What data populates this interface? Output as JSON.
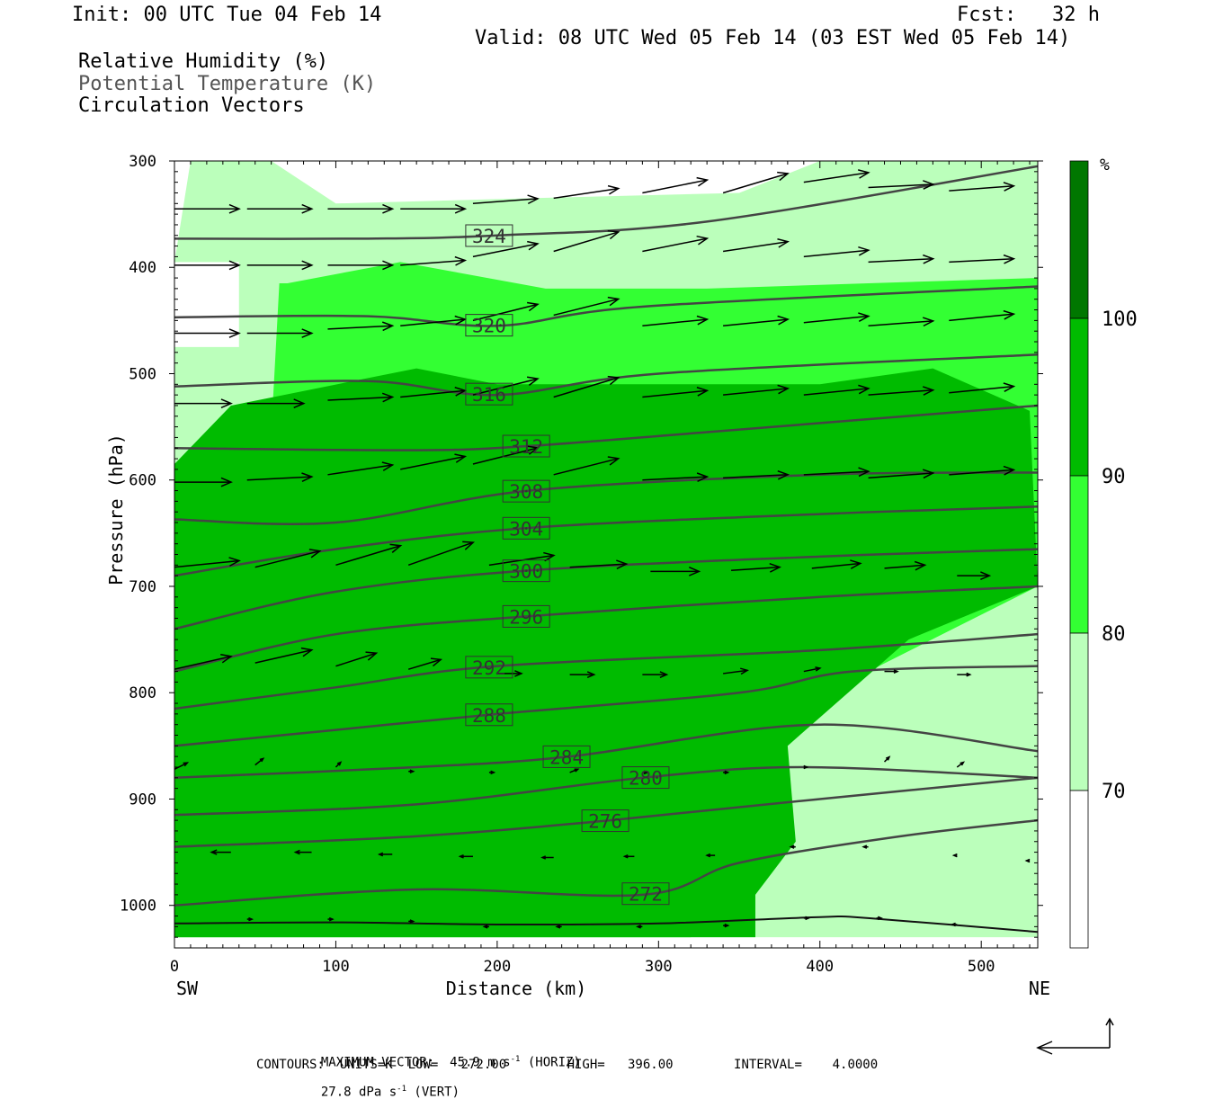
{
  "header": {
    "init": "Init: 00 UTC Tue 04 Feb 14",
    "fcst": "Fcst:   32 h",
    "valid": "Valid: 08 UTC Wed 05 Feb 14 (03 EST Wed 05 Feb 14)"
  },
  "legend_titles": [
    "Relative Humidity (%)",
    "Potential Temperature (K)",
    "Circulation Vectors"
  ],
  "chart_data": {
    "type": "cross-section",
    "xlabel": "Distance (km)",
    "ylabel": "Pressure (hPa)",
    "xlim": [
      0,
      535
    ],
    "ylim": [
      1040,
      300
    ],
    "x_ticks": [
      0,
      100,
      200,
      300,
      400,
      500
    ],
    "y_ticks": [
      300,
      400,
      500,
      600,
      700,
      800,
      900,
      1000
    ],
    "endpoint_left": "SW",
    "endpoint_right": "NE",
    "colorbar": {
      "unit": "%",
      "levels": [
        70,
        80,
        90,
        100
      ],
      "colors": [
        "#ffffff",
        "#bbffbb",
        "#33ff33",
        "#00bb00",
        "#007700"
      ]
    },
    "rh_fill": {
      "band_70_80": {
        "x": [
          0,
          535
        ],
        "comment": ""
      },
      "light_region": [
        [
          10,
          300
        ],
        [
          60,
          300
        ],
        [
          100,
          340
        ],
        [
          220,
          335
        ],
        [
          350,
          330
        ],
        [
          400,
          300
        ],
        [
          535,
          300
        ],
        [
          535,
          1030
        ],
        [
          0,
          1030
        ],
        [
          0,
          475
        ],
        [
          40,
          475
        ],
        [
          40,
          395
        ],
        [
          0,
          395
        ]
      ],
      "mid_region": [
        [
          70,
          415
        ],
        [
          140,
          395
        ],
        [
          230,
          420
        ],
        [
          330,
          420
        ],
        [
          430,
          415
        ],
        [
          535,
          410
        ],
        [
          535,
          700
        ],
        [
          430,
          780
        ],
        [
          360,
          850
        ],
        [
          330,
          960
        ],
        [
          320,
          1030
        ],
        [
          0,
          1030
        ],
        [
          0,
          585
        ],
        [
          60,
          555
        ],
        [
          65,
          415
        ]
      ],
      "dark_region": [
        [
          35,
          530
        ],
        [
          150,
          495
        ],
        [
          200,
          510
        ],
        [
          300,
          510
        ],
        [
          400,
          510
        ],
        [
          470,
          495
        ],
        [
          530,
          535
        ],
        [
          535,
          700
        ],
        [
          455,
          750
        ],
        [
          380,
          850
        ],
        [
          385,
          940
        ],
        [
          360,
          990
        ],
        [
          360,
          1030
        ],
        [
          0,
          1030
        ],
        [
          0,
          585
        ]
      ]
    },
    "theta_contours": [
      {
        "level": 324,
        "points": [
          [
            0,
            373
          ],
          [
            120,
            373
          ],
          [
            200,
            370
          ],
          [
            330,
            357
          ],
          [
            535,
            305
          ]
        ],
        "label_x": 195
      },
      {
        "level": 320,
        "points": [
          [
            0,
            447
          ],
          [
            120,
            446
          ],
          [
            200,
            455
          ],
          [
            290,
            437
          ],
          [
            535,
            418
          ]
        ],
        "label_x": 195
      },
      {
        "level": 316,
        "points": [
          [
            0,
            512
          ],
          [
            120,
            507
          ],
          [
            200,
            520
          ],
          [
            300,
            500
          ],
          [
            535,
            482
          ]
        ],
        "label_x": 195
      },
      {
        "level": 312,
        "points": [
          [
            0,
            570
          ],
          [
            150,
            572
          ],
          [
            220,
            568
          ],
          [
            330,
            555
          ],
          [
            535,
            530
          ]
        ],
        "label_x": 218
      },
      {
        "level": 308,
        "points": [
          [
            0,
            637
          ],
          [
            100,
            640
          ],
          [
            220,
            610
          ],
          [
            400,
            595
          ],
          [
            535,
            593
          ]
        ],
        "label_x": 218
      },
      {
        "level": 304,
        "points": [
          [
            0,
            690
          ],
          [
            100,
            665
          ],
          [
            220,
            645
          ],
          [
            400,
            632
          ],
          [
            535,
            625
          ]
        ],
        "label_x": 218
      },
      {
        "level": 300,
        "points": [
          [
            0,
            740
          ],
          [
            100,
            705
          ],
          [
            220,
            685
          ],
          [
            400,
            672
          ],
          [
            535,
            665
          ]
        ],
        "label_x": 218
      },
      {
        "level": 296,
        "points": [
          [
            0,
            780
          ],
          [
            100,
            745
          ],
          [
            220,
            728
          ],
          [
            400,
            710
          ],
          [
            535,
            700
          ]
        ],
        "label_x": 218
      },
      {
        "level": 292,
        "points": [
          [
            0,
            815
          ],
          [
            100,
            795
          ],
          [
            200,
            775
          ],
          [
            400,
            760
          ],
          [
            535,
            745
          ]
        ],
        "label_x": 195
      },
      {
        "level": 288,
        "points": [
          [
            0,
            850
          ],
          [
            100,
            835
          ],
          [
            200,
            820
          ],
          [
            350,
            800
          ],
          [
            420,
            780
          ],
          [
            535,
            775
          ]
        ],
        "label_x": 195
      },
      {
        "level": 284,
        "points": [
          [
            0,
            880
          ],
          [
            150,
            870
          ],
          [
            245,
            860
          ],
          [
            400,
            830
          ],
          [
            535,
            855
          ]
        ],
        "label_x": 243
      },
      {
        "level": 280,
        "points": [
          [
            0,
            915
          ],
          [
            150,
            905
          ],
          [
            290,
            880
          ],
          [
            390,
            870
          ],
          [
            535,
            880
          ]
        ],
        "label_x": 292
      },
      {
        "level": 276,
        "points": [
          [
            0,
            945
          ],
          [
            150,
            935
          ],
          [
            270,
            920
          ],
          [
            400,
            900
          ],
          [
            535,
            880
          ]
        ],
        "label_x": 267
      },
      {
        "level": 272,
        "points": [
          [
            0,
            1000
          ],
          [
            150,
            985
          ],
          [
            290,
            990
          ],
          [
            350,
            960
          ],
          [
            450,
            935
          ],
          [
            535,
            920
          ]
        ],
        "label_x": 292
      }
    ],
    "surface_line": [
      [
        0,
        1017
      ],
      [
        100,
        1016
      ],
      [
        200,
        1018
      ],
      [
        300,
        1017
      ],
      [
        400,
        1011
      ],
      [
        430,
        1012
      ],
      [
        535,
        1025
      ]
    ],
    "vectors": [
      {
        "x": 0,
        "p": 345,
        "u": 40,
        "w": 0
      },
      {
        "x": 45,
        "p": 345,
        "u": 40,
        "w": 0
      },
      {
        "x": 95,
        "p": 345,
        "u": 40,
        "w": 0
      },
      {
        "x": 140,
        "p": 345,
        "u": 40,
        "w": 0
      },
      {
        "x": 185,
        "p": 340,
        "u": 40,
        "w": 3
      },
      {
        "x": 235,
        "p": 335,
        "u": 40,
        "w": 6
      },
      {
        "x": 290,
        "p": 330,
        "u": 40,
        "w": 8
      },
      {
        "x": 340,
        "p": 330,
        "u": 40,
        "w": 12
      },
      {
        "x": 390,
        "p": 320,
        "u": 40,
        "w": 6
      },
      {
        "x": 430,
        "p": 325,
        "u": 40,
        "w": 2
      },
      {
        "x": 480,
        "p": 328,
        "u": 40,
        "w": 3
      },
      {
        "x": 0,
        "p": 398,
        "u": 40,
        "w": 0
      },
      {
        "x": 45,
        "p": 398,
        "u": 40,
        "w": 0
      },
      {
        "x": 95,
        "p": 398,
        "u": 40,
        "w": 0
      },
      {
        "x": 140,
        "p": 398,
        "u": 40,
        "w": 3
      },
      {
        "x": 185,
        "p": 390,
        "u": 40,
        "w": 8
      },
      {
        "x": 235,
        "p": 385,
        "u": 40,
        "w": 12
      },
      {
        "x": 290,
        "p": 385,
        "u": 40,
        "w": 8
      },
      {
        "x": 340,
        "p": 385,
        "u": 40,
        "w": 6
      },
      {
        "x": 390,
        "p": 390,
        "u": 40,
        "w": 4
      },
      {
        "x": 430,
        "p": 395,
        "u": 40,
        "w": 2
      },
      {
        "x": 480,
        "p": 395,
        "u": 40,
        "w": 2
      },
      {
        "x": 0,
        "p": 462,
        "u": 40,
        "w": 0
      },
      {
        "x": 45,
        "p": 462,
        "u": 40,
        "w": 0
      },
      {
        "x": 95,
        "p": 458,
        "u": 40,
        "w": 2
      },
      {
        "x": 140,
        "p": 455,
        "u": 40,
        "w": 4
      },
      {
        "x": 185,
        "p": 450,
        "u": 40,
        "w": 10
      },
      {
        "x": 235,
        "p": 445,
        "u": 40,
        "w": 10
      },
      {
        "x": 290,
        "p": 455,
        "u": 40,
        "w": 4
      },
      {
        "x": 340,
        "p": 455,
        "u": 40,
        "w": 4
      },
      {
        "x": 390,
        "p": 452,
        "u": 40,
        "w": 4
      },
      {
        "x": 430,
        "p": 455,
        "u": 40,
        "w": 3
      },
      {
        "x": 480,
        "p": 450,
        "u": 40,
        "w": 4
      },
      {
        "x": 0,
        "p": 528,
        "u": 35,
        "w": 0
      },
      {
        "x": 45,
        "p": 528,
        "u": 35,
        "w": 0
      },
      {
        "x": 95,
        "p": 525,
        "u": 40,
        "w": 2
      },
      {
        "x": 140,
        "p": 522,
        "u": 40,
        "w": 4
      },
      {
        "x": 185,
        "p": 520,
        "u": 40,
        "w": 10
      },
      {
        "x": 235,
        "p": 522,
        "u": 40,
        "w": 12
      },
      {
        "x": 290,
        "p": 522,
        "u": 40,
        "w": 4
      },
      {
        "x": 340,
        "p": 520,
        "u": 40,
        "w": 4
      },
      {
        "x": 390,
        "p": 520,
        "u": 40,
        "w": 4
      },
      {
        "x": 430,
        "p": 520,
        "u": 40,
        "w": 3
      },
      {
        "x": 480,
        "p": 518,
        "u": 40,
        "w": 4
      },
      {
        "x": 0,
        "p": 602,
        "u": 35,
        "w": 0
      },
      {
        "x": 45,
        "p": 600,
        "u": 40,
        "w": 2
      },
      {
        "x": 95,
        "p": 595,
        "u": 40,
        "w": 6
      },
      {
        "x": 140,
        "p": 590,
        "u": 40,
        "w": 8
      },
      {
        "x": 185,
        "p": 585,
        "u": 40,
        "w": 10
      },
      {
        "x": 235,
        "p": 595,
        "u": 40,
        "w": 10
      },
      {
        "x": 290,
        "p": 600,
        "u": 40,
        "w": 2
      },
      {
        "x": 340,
        "p": 598,
        "u": 40,
        "w": 2
      },
      {
        "x": 390,
        "p": 595,
        "u": 40,
        "w": 2
      },
      {
        "x": 430,
        "p": 598,
        "u": 40,
        "w": 3
      },
      {
        "x": 480,
        "p": 595,
        "u": 40,
        "w": 3
      },
      {
        "x": 0,
        "p": 682,
        "u": 40,
        "w": 4
      },
      {
        "x": 50,
        "p": 682,
        "u": 40,
        "w": 10
      },
      {
        "x": 100,
        "p": 680,
        "u": 40,
        "w": 12
      },
      {
        "x": 145,
        "p": 680,
        "u": 40,
        "w": 14
      },
      {
        "x": 195,
        "p": 680,
        "u": 40,
        "w": 6
      },
      {
        "x": 245,
        "p": 682,
        "u": 35,
        "w": 2
      },
      {
        "x": 295,
        "p": 686,
        "u": 30,
        "w": 0
      },
      {
        "x": 345,
        "p": 685,
        "u": 30,
        "w": 2
      },
      {
        "x": 395,
        "p": 683,
        "u": 30,
        "w": 3
      },
      {
        "x": 440,
        "p": 683,
        "u": 25,
        "w": 2
      },
      {
        "x": 485,
        "p": 690,
        "u": 20,
        "w": 0
      },
      {
        "x": 0,
        "p": 778,
        "u": 35,
        "w": 8
      },
      {
        "x": 50,
        "p": 772,
        "u": 35,
        "w": 8
      },
      {
        "x": 100,
        "p": 775,
        "u": 25,
        "w": 8
      },
      {
        "x": 145,
        "p": 778,
        "u": 20,
        "w": 6
      },
      {
        "x": 200,
        "p": 782,
        "u": 15,
        "w": 0
      },
      {
        "x": 245,
        "p": 783,
        "u": 15,
        "w": 0
      },
      {
        "x": 290,
        "p": 783,
        "u": 15,
        "w": 0
      },
      {
        "x": 340,
        "p": 782,
        "u": 15,
        "w": 2
      },
      {
        "x": 390,
        "p": 780,
        "u": 10,
        "w": 2
      },
      {
        "x": 440,
        "p": 780,
        "u": 8,
        "w": 0
      },
      {
        "x": 485,
        "p": 783,
        "u": 8,
        "w": 0
      },
      {
        "x": 0,
        "p": 872,
        "u": 8,
        "w": 4
      },
      {
        "x": 50,
        "p": 868,
        "u": 5,
        "w": 4
      },
      {
        "x": 100,
        "p": 870,
        "u": 3,
        "w": 3
      },
      {
        "x": 145,
        "p": 874,
        "u": 3,
        "w": 0
      },
      {
        "x": 195,
        "p": 875,
        "u": 3,
        "w": 0
      },
      {
        "x": 245,
        "p": 875,
        "u": 5,
        "w": 2
      },
      {
        "x": 290,
        "p": 875,
        "u": 3,
        "w": 0
      },
      {
        "x": 340,
        "p": 875,
        "u": 3,
        "w": 0
      },
      {
        "x": 390,
        "p": 870,
        "u": 2,
        "w": 0
      },
      {
        "x": 440,
        "p": 865,
        "u": 3,
        "w": 3
      },
      {
        "x": 485,
        "p": 870,
        "u": 4,
        "w": 3
      },
      {
        "x": 35,
        "p": 950,
        "u": -12,
        "w": 0
      },
      {
        "x": 85,
        "p": 950,
        "u": -10,
        "w": 0
      },
      {
        "x": 135,
        "p": 952,
        "u": -8,
        "w": 0
      },
      {
        "x": 185,
        "p": 954,
        "u": -8,
        "w": 0
      },
      {
        "x": 235,
        "p": 955,
        "u": -7,
        "w": 0
      },
      {
        "x": 285,
        "p": 954,
        "u": -6,
        "w": 0
      },
      {
        "x": 335,
        "p": 953,
        "u": -5,
        "w": 0
      },
      {
        "x": 385,
        "p": 945,
        "u": -3,
        "w": 0
      },
      {
        "x": 430,
        "p": 945,
        "u": -3,
        "w": 0
      },
      {
        "x": 485,
        "p": 953,
        "u": -2,
        "w": 0
      },
      {
        "x": 530,
        "p": 958,
        "u": -2,
        "w": 0
      },
      {
        "x": 45,
        "p": 1013,
        "u": 3,
        "w": 0
      },
      {
        "x": 95,
        "p": 1013,
        "u": 3,
        "w": 0
      },
      {
        "x": 145,
        "p": 1015,
        "u": 3,
        "w": 0
      },
      {
        "x": 195,
        "p": 1020,
        "u": -3,
        "w": 0
      },
      {
        "x": 240,
        "p": 1020,
        "u": -3,
        "w": 0
      },
      {
        "x": 290,
        "p": 1020,
        "u": -3,
        "w": 0
      },
      {
        "x": 340,
        "p": 1019,
        "u": 3,
        "w": 0
      },
      {
        "x": 390,
        "p": 1012,
        "u": 3,
        "w": 0
      },
      {
        "x": 435,
        "p": 1012,
        "u": 3,
        "w": 0
      },
      {
        "x": 485,
        "p": 1018,
        "u": -3,
        "w": 0
      }
    ]
  },
  "footer": {
    "max_vector_prefix": "MAXIMUM VECTOR:  45.9 m s",
    "max_vector_exp": "-1",
    "max_vector_horiz": " (HORIZ)",
    "max_vector_vert_prefix": "27.8 dPa s",
    "max_vector_vert_exp": "-1",
    "max_vector_vert": " (VERT)",
    "contours": "CONTOURS:  UNITS=K  LOW=   272.00        HIGH=   396.00        INTERVAL=    4.0000"
  }
}
